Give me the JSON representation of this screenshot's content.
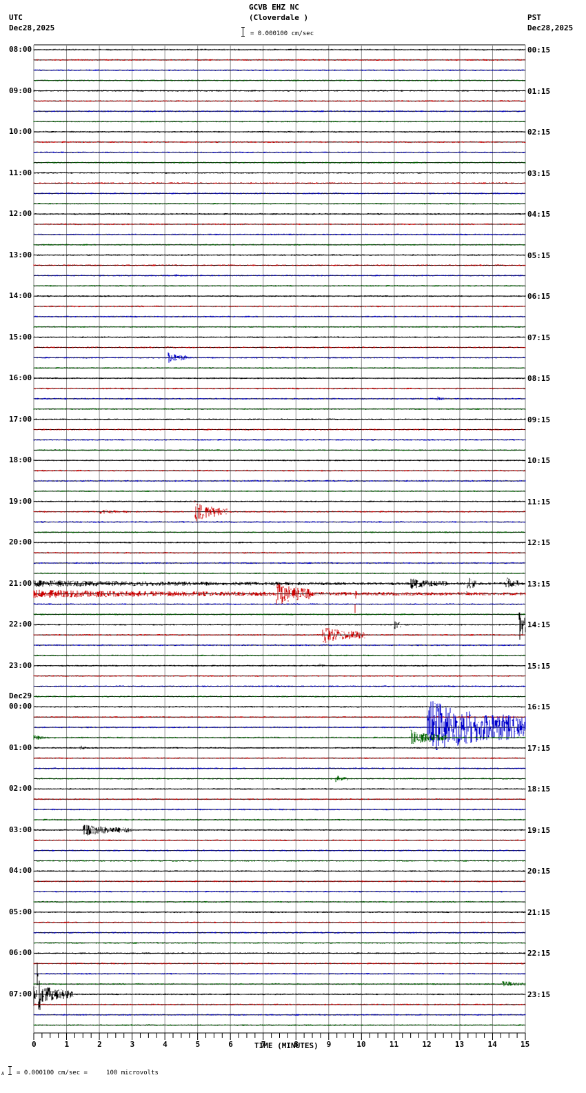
{
  "header": {
    "station": "GCVB EHZ NC",
    "location": "(Cloverdale )",
    "left_tz": "UTC",
    "left_date": "Dec28,2025",
    "right_tz": "PST",
    "right_date": "Dec28,2025",
    "scale_text": "= 0.000100 cm/sec"
  },
  "footer": {
    "scale_text": "= 0.000100 cm/sec =     100 microvolts",
    "prefix": "A"
  },
  "chart_data": {
    "type": "line",
    "title": "GCVB EHZ NC (Cloverdale )",
    "xlabel": "TIME (MINUTES)",
    "ylabel": "",
    "x_ticks": [
      "0",
      "1",
      "2",
      "3",
      "4",
      "5",
      "6",
      "7",
      "8",
      "9",
      "10",
      "11",
      "12",
      "13",
      "14",
      "15"
    ],
    "xlim": [
      0,
      15
    ],
    "grid": true,
    "trace_colors": [
      "#000000",
      "#cc0000",
      "#0000cc",
      "#006600"
    ],
    "traces_per_hour": 4,
    "left_labels": [
      {
        "row": 0,
        "text": "08:00"
      },
      {
        "row": 4,
        "text": "09:00"
      },
      {
        "row": 8,
        "text": "10:00"
      },
      {
        "row": 12,
        "text": "11:00"
      },
      {
        "row": 16,
        "text": "12:00"
      },
      {
        "row": 20,
        "text": "13:00"
      },
      {
        "row": 24,
        "text": "14:00"
      },
      {
        "row": 28,
        "text": "15:00"
      },
      {
        "row": 32,
        "text": "16:00"
      },
      {
        "row": 36,
        "text": "17:00"
      },
      {
        "row": 40,
        "text": "18:00"
      },
      {
        "row": 44,
        "text": "19:00"
      },
      {
        "row": 48,
        "text": "20:00"
      },
      {
        "row": 52,
        "text": "21:00"
      },
      {
        "row": 56,
        "text": "22:00"
      },
      {
        "row": 60,
        "text": "23:00"
      },
      {
        "row": 64,
        "text": "00:00",
        "date": "Dec29"
      },
      {
        "row": 68,
        "text": "01:00"
      },
      {
        "row": 72,
        "text": "02:00"
      },
      {
        "row": 76,
        "text": "03:00"
      },
      {
        "row": 80,
        "text": "04:00"
      },
      {
        "row": 84,
        "text": "05:00"
      },
      {
        "row": 88,
        "text": "06:00"
      },
      {
        "row": 92,
        "text": "07:00"
      }
    ],
    "right_labels": [
      {
        "row": 0,
        "text": "00:15"
      },
      {
        "row": 4,
        "text": "01:15"
      },
      {
        "row": 8,
        "text": "02:15"
      },
      {
        "row": 12,
        "text": "03:15"
      },
      {
        "row": 16,
        "text": "04:15"
      },
      {
        "row": 20,
        "text": "05:15"
      },
      {
        "row": 24,
        "text": "06:15"
      },
      {
        "row": 28,
        "text": "07:15"
      },
      {
        "row": 32,
        "text": "08:15"
      },
      {
        "row": 36,
        "text": "09:15"
      },
      {
        "row": 40,
        "text": "10:15"
      },
      {
        "row": 44,
        "text": "11:15"
      },
      {
        "row": 48,
        "text": "12:15"
      },
      {
        "row": 52,
        "text": "13:15"
      },
      {
        "row": 56,
        "text": "14:15"
      },
      {
        "row": 60,
        "text": "15:15"
      },
      {
        "row": 64,
        "text": "16:15"
      },
      {
        "row": 68,
        "text": "17:15"
      },
      {
        "row": 72,
        "text": "18:15"
      },
      {
        "row": 76,
        "text": "19:15"
      },
      {
        "row": 80,
        "text": "20:15"
      },
      {
        "row": 84,
        "text": "21:15"
      },
      {
        "row": 88,
        "text": "22:15"
      },
      {
        "row": 92,
        "text": "23:15"
      }
    ],
    "events": [
      {
        "row": 22,
        "start": 4.3,
        "end": 4.7,
        "amp": 3
      },
      {
        "row": 30,
        "start": 4.1,
        "end": 4.7,
        "amp": 9
      },
      {
        "row": 34,
        "start": 12.3,
        "end": 12.6,
        "amp": 4
      },
      {
        "row": 45,
        "start": 2.0,
        "end": 3.0,
        "amp": 4
      },
      {
        "row": 45,
        "start": 4.9,
        "end": 5.9,
        "amp": 16
      },
      {
        "row": 52,
        "start": 0.0,
        "end": 15.0,
        "amp": 5
      },
      {
        "row": 52,
        "start": 11.5,
        "end": 12.6,
        "amp": 9
      },
      {
        "row": 52,
        "start": 13.2,
        "end": 13.5,
        "amp": 15
      },
      {
        "row": 52,
        "start": 14.4,
        "end": 14.8,
        "amp": 12
      },
      {
        "row": 53,
        "start": 0.0,
        "end": 15.0,
        "amp": 6
      },
      {
        "row": 53,
        "start": 7.4,
        "end": 8.5,
        "amp": 20
      },
      {
        "row": 53,
        "start": 9.8,
        "end": 9.85,
        "amp": 40
      },
      {
        "row": 56,
        "start": 14.8,
        "end": 15.0,
        "amp": 30
      },
      {
        "row": 56,
        "start": 11.0,
        "end": 11.2,
        "amp": 10
      },
      {
        "row": 57,
        "start": 8.8,
        "end": 10.1,
        "amp": 14
      },
      {
        "row": 60,
        "start": 8.7,
        "end": 8.9,
        "amp": 5
      },
      {
        "row": 66,
        "start": 12.0,
        "end": 15.0,
        "amp": 45
      },
      {
        "row": 67,
        "start": 0.0,
        "end": 0.7,
        "amp": 4
      },
      {
        "row": 67,
        "start": 11.5,
        "end": 12.6,
        "amp": 12
      },
      {
        "row": 68,
        "start": 1.4,
        "end": 1.6,
        "amp": 5
      },
      {
        "row": 71,
        "start": 9.2,
        "end": 9.6,
        "amp": 6
      },
      {
        "row": 76,
        "start": 1.5,
        "end": 3.0,
        "amp": 10
      },
      {
        "row": 91,
        "start": 14.3,
        "end": 15.0,
        "amp": 6
      },
      {
        "row": 92,
        "start": 0.0,
        "end": 1.2,
        "amp": 18
      },
      {
        "row": 92,
        "start": 0.1,
        "end": 0.2,
        "amp": 60
      }
    ]
  }
}
